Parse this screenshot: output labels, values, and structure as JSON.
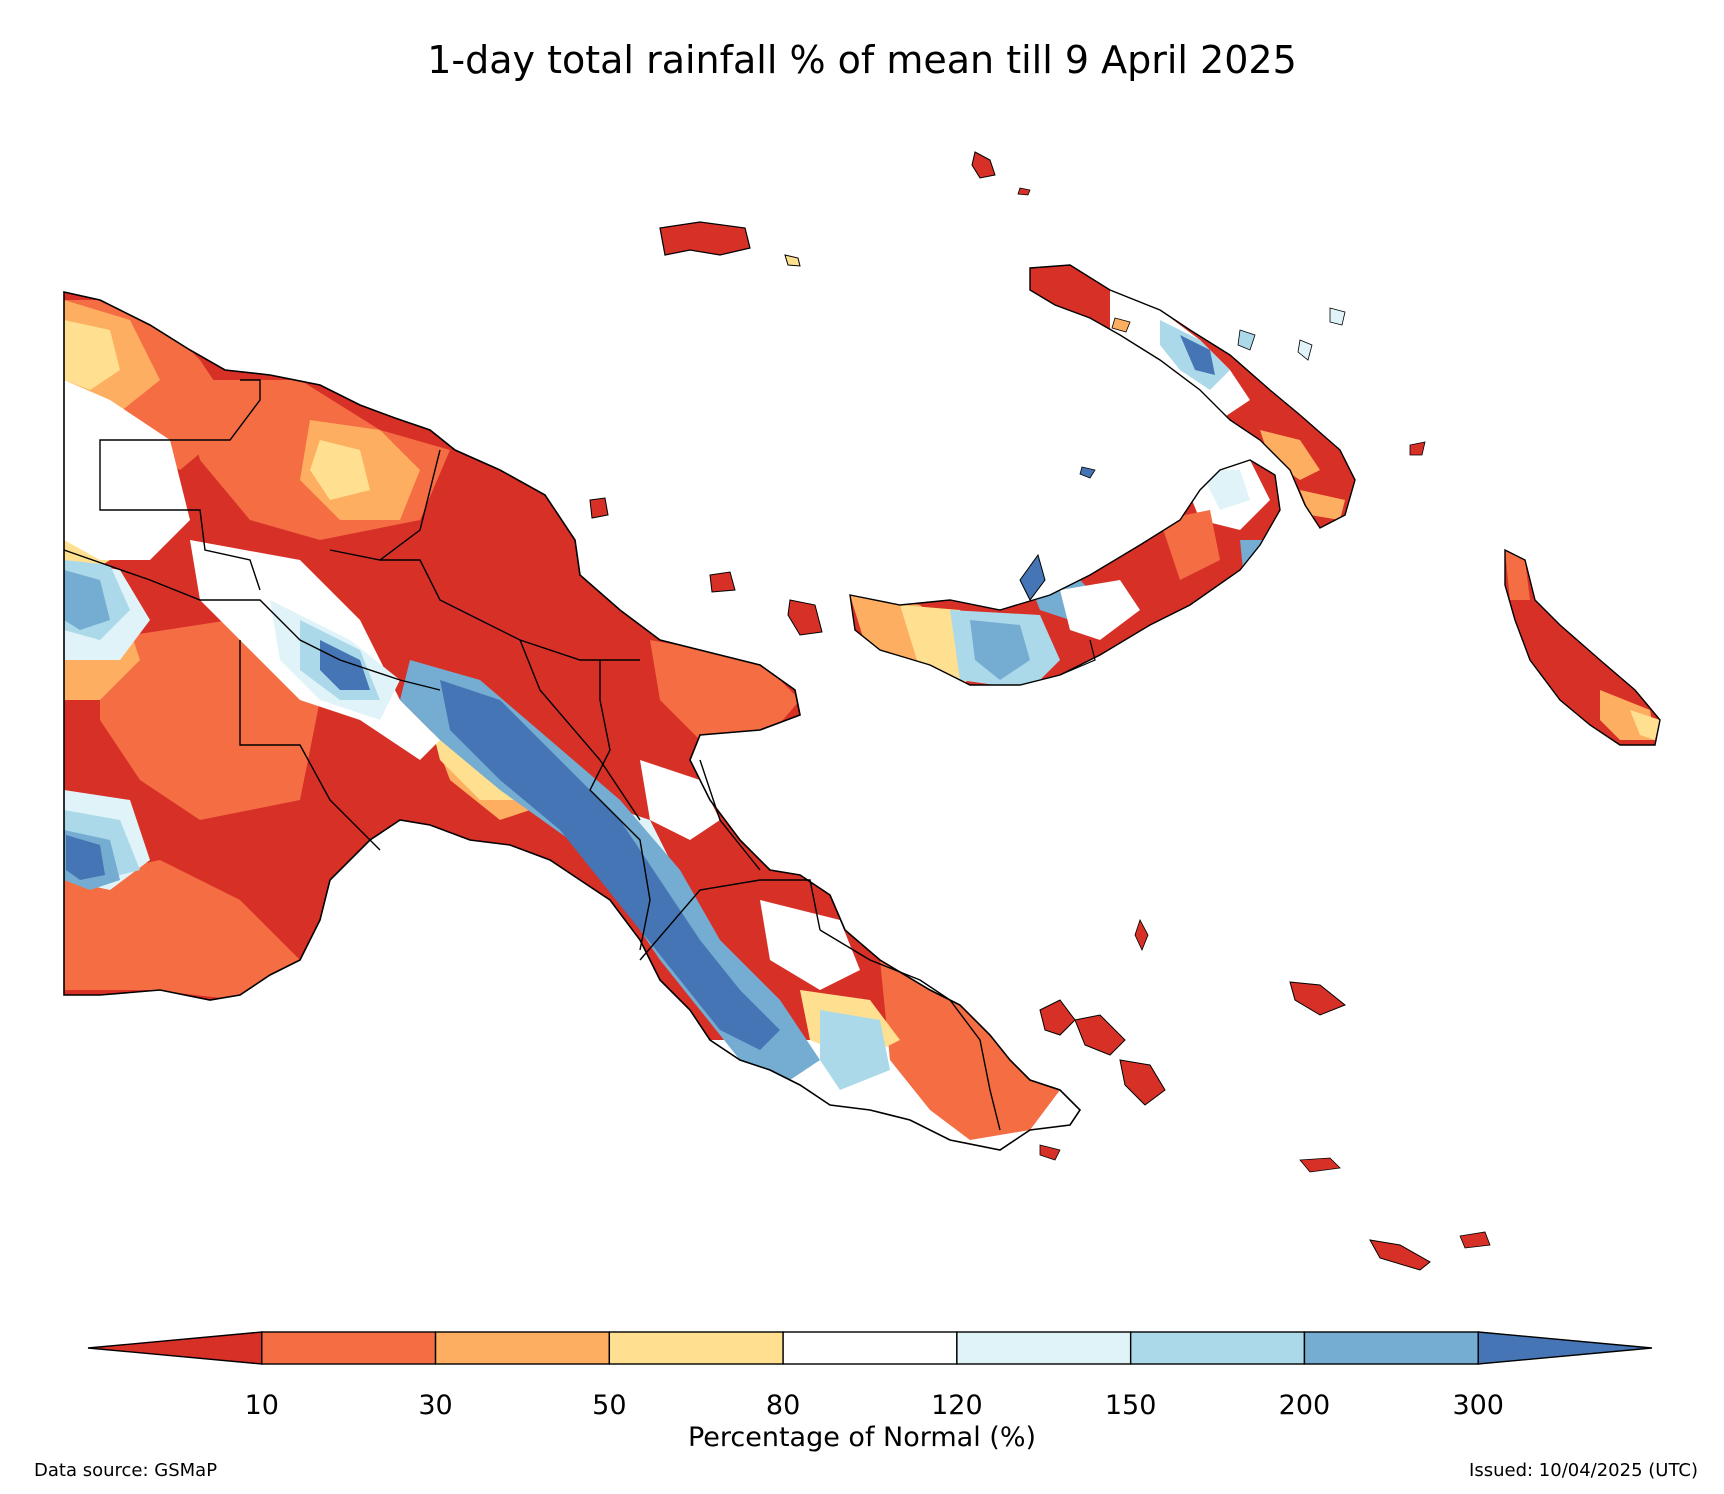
{
  "title": "1-day total rainfall % of mean till 9 April 2025",
  "colorbar": {
    "title": "Percentage of Normal (%)",
    "ticks": [
      "10",
      "30",
      "50",
      "80",
      "120",
      "150",
      "200",
      "300"
    ],
    "colors": [
      "#d73027",
      "#f46d43",
      "#fdae61",
      "#fee090",
      "#ffffff",
      "#e0f3f8",
      "#abd9e9",
      "#74add1",
      "#4575b4"
    ]
  },
  "footer": {
    "source": "Data source: GSMaP",
    "issued": "Issued: 10/04/2025 (UTC)"
  }
}
